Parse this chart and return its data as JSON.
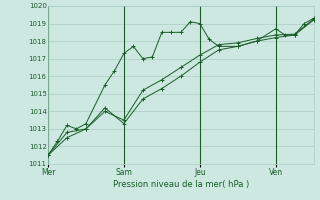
{
  "title": "",
  "xlabel": "Pression niveau de la mer( hPa )",
  "ylabel": "",
  "bg_color": "#cce8e0",
  "grid_color": "#aaccc4",
  "line_color": "#1a5c28",
  "ylim": [
    1011,
    1020
  ],
  "yticks": [
    1011,
    1012,
    1013,
    1014,
    1015,
    1016,
    1017,
    1018,
    1019,
    1020
  ],
  "xtick_labels": [
    "Mer",
    "Sam",
    "Jeu",
    "Ven"
  ],
  "xtick_positions": [
    0,
    48,
    96,
    144
  ],
  "total_hours": 168,
  "series1_x": [
    0,
    6,
    12,
    18,
    24,
    36,
    42,
    48,
    54,
    60,
    66,
    72,
    78,
    84,
    90,
    96,
    102,
    108,
    120,
    132,
    144,
    150,
    156,
    162,
    168
  ],
  "series1_y": [
    1011.5,
    1012.3,
    1013.2,
    1013.0,
    1013.3,
    1015.5,
    1016.3,
    1017.3,
    1017.7,
    1017.0,
    1017.1,
    1018.5,
    1018.5,
    1018.5,
    1019.1,
    1019.0,
    1018.1,
    1017.7,
    1017.7,
    1018.0,
    1018.7,
    1018.35,
    1018.35,
    1019.0,
    1019.3
  ],
  "series2_x": [
    0,
    12,
    24,
    36,
    48,
    60,
    72,
    84,
    96,
    108,
    120,
    132,
    144,
    156,
    168
  ],
  "series2_y": [
    1011.5,
    1012.8,
    1013.0,
    1014.2,
    1013.3,
    1014.7,
    1015.3,
    1016.0,
    1016.8,
    1017.5,
    1017.7,
    1018.0,
    1018.2,
    1018.35,
    1019.2
  ],
  "series3_x": [
    0,
    12,
    24,
    36,
    48,
    60,
    72,
    84,
    96,
    108,
    120,
    132,
    144,
    156,
    168
  ],
  "series3_y": [
    1011.5,
    1012.5,
    1013.0,
    1014.0,
    1013.5,
    1015.2,
    1015.8,
    1016.5,
    1017.2,
    1017.8,
    1017.9,
    1018.15,
    1018.35,
    1018.4,
    1019.25
  ],
  "vline_color": "#1a5c28",
  "vline_positions": [
    0,
    48,
    96,
    144
  ]
}
